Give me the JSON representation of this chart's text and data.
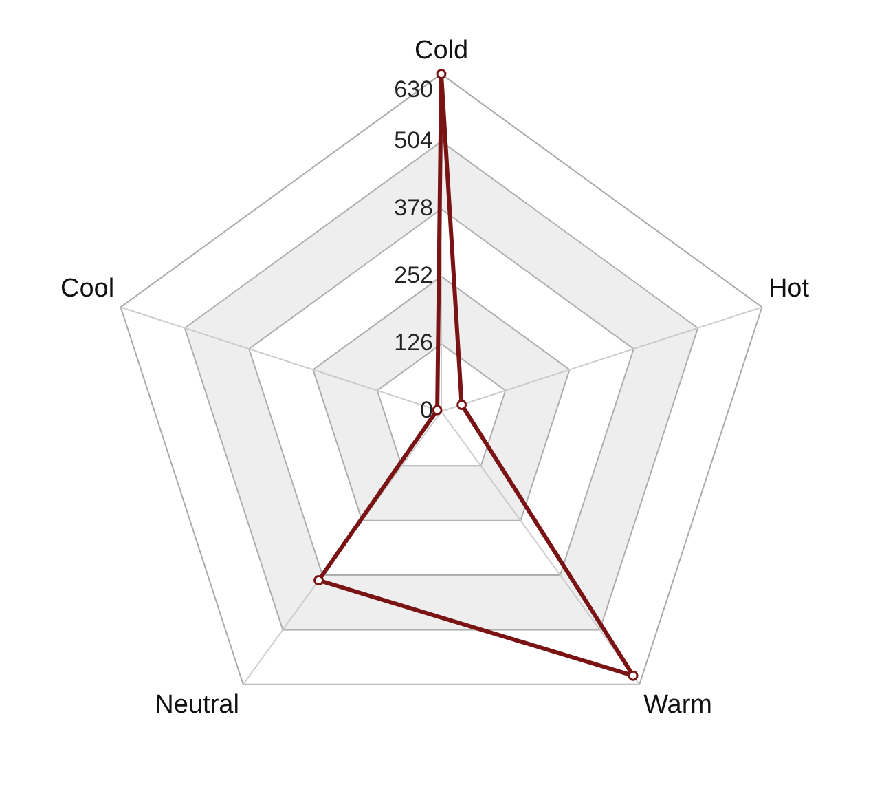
{
  "chart_data": {
    "type": "radar",
    "categories": [
      "Cold",
      "Hot",
      "Warm",
      "Neutral",
      "Cool"
    ],
    "series": [
      {
        "color": "#7a1414",
        "values": [
          630,
          40,
          610,
          390,
          8
        ]
      }
    ],
    "ylim": [
      0,
      630
    ],
    "yticks": [
      0,
      126,
      252,
      378,
      504,
      630
    ],
    "marker": "circle",
    "legend": false,
    "grid": true
  }
}
